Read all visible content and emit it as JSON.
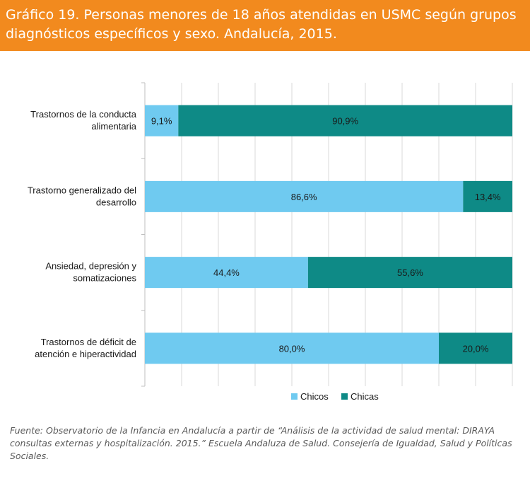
{
  "header": {
    "title": "Gráfico 19. Personas menores de 18 años atendidas en USMC según grupos diagnósticos específicos y sexo. Andalucía, 2015."
  },
  "chart_data": {
    "type": "bar",
    "orientation": "horizontal",
    "stacked": true,
    "percent": true,
    "categories": [
      [
        "Trastornos de la conducta",
        "alimentaria"
      ],
      [
        "Trastorno generalizado del",
        "desarrollo"
      ],
      [
        "Ansiedad, depresión y",
        "somatizaciones"
      ],
      [
        "Trastornos de déficit de",
        "atención e hiperactividad"
      ]
    ],
    "series": [
      {
        "name": "Chicos",
        "color": "#6fcaf0",
        "values": [
          9.1,
          86.6,
          44.4,
          80.0
        ],
        "labels": [
          "9,1%",
          "86,6%",
          "44,4%",
          "80,0%"
        ]
      },
      {
        "name": "Chicas",
        "color": "#0e8a86",
        "values": [
          90.9,
          13.4,
          55.6,
          20.0
        ],
        "labels": [
          "90,9%",
          "13,4%",
          "55,6%",
          "20,0%"
        ]
      }
    ],
    "xlim": [
      0,
      100
    ],
    "legend": "bottom"
  },
  "footer": {
    "source": "Fuente: Observatorio de la Infancia en Andalucía a partir de “Análisis de la actividad de salud mental: DIRAYA consultas externas y hospitalización. 2015.” Escuela Andaluza de Salud. Consejería de Igualdad, Salud y Políticas Sociales."
  }
}
